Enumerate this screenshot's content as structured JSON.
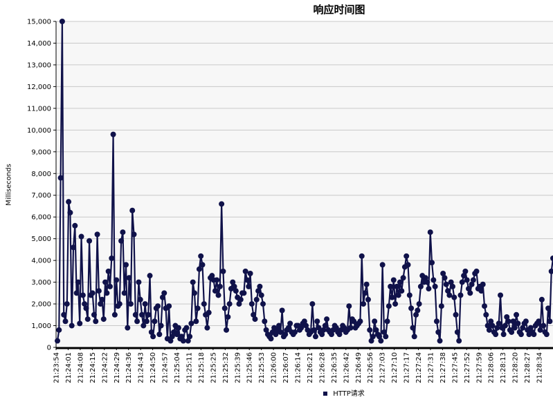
{
  "chart_data": {
    "type": "line",
    "title": "响应时间图",
    "ylabel": "Milliseconds",
    "ylim": [
      0,
      15000
    ],
    "yticks": [
      0,
      1000,
      2000,
      3000,
      4000,
      5000,
      6000,
      7000,
      8000,
      9000,
      10000,
      11000,
      12000,
      13000,
      14000,
      15000
    ],
    "ytick_labels": [
      "0",
      "1,000",
      "2,000",
      "3,000",
      "4,000",
      "5,000",
      "6,000",
      "7,000",
      "8,000",
      "9,000",
      "10,000",
      "11,000",
      "12,000",
      "13,000",
      "14,000",
      "15,000"
    ],
    "x_tick_labels": [
      "21:23:54",
      "21:24:01",
      "21:24:08",
      "21:24:15",
      "21:24:22",
      "21:24:29",
      "21:24:36",
      "21:24:43",
      "21:24:50",
      "21:24:57",
      "21:25:04",
      "21:25:11",
      "21:25:18",
      "21:25:25",
      "21:25:32",
      "21:25:39",
      "21:25:46",
      "21:25:53",
      "21:26:00",
      "21:26:07",
      "21:26:14",
      "21:26:21",
      "21:26:28",
      "21:26:35",
      "21:26:42",
      "21:26:49",
      "21:26:56",
      "21:27:03",
      "21:27:10",
      "21:27:17",
      "21:27:24",
      "21:27:31",
      "21:27:38",
      "21:27:45",
      "21:27:52",
      "21:27:59",
      "21:28:06",
      "21:28:13",
      "21:28:20",
      "21:28:27",
      "21:28:34"
    ],
    "grid": true,
    "legend_position": "bottom",
    "colors": {
      "series": "#10124a",
      "plot_bg": "#f7f7f7",
      "grid": "#c8c8c8"
    },
    "series": [
      {
        "name": "HTTP请求",
        "values": [
          300,
          800,
          7800,
          15000,
          1500,
          1200,
          2000,
          6700,
          6200,
          1000,
          4600,
          5600,
          2500,
          3000,
          1100,
          5100,
          2400,
          2000,
          1800,
          1300,
          4900,
          2400,
          2500,
          1500,
          1200,
          5200,
          2600,
          2000,
          2200,
          1300,
          3000,
          2500,
          3500,
          2800,
          4100,
          9800,
          1500,
          3100,
          1900,
          2000,
          4900,
          5300,
          2500,
          3800,
          900,
          3200,
          2000,
          6300,
          5200,
          1500,
          1200,
          3000,
          2200,
          1500,
          1000,
          2000,
          1200,
          1500,
          3300,
          700,
          500,
          1200,
          1800,
          1900,
          600,
          1000,
          2300,
          2500,
          1800,
          400,
          1900,
          300,
          500,
          700,
          1000,
          600,
          900,
          400,
          500,
          300,
          800,
          900,
          300,
          500,
          1100,
          3000,
          2500,
          1200,
          1800,
          3600,
          4200,
          3800,
          2000,
          1500,
          900,
          1600,
          3200,
          3300,
          3100,
          2600,
          3100,
          2400,
          2800,
          6600,
          3500,
          1800,
          800,
          1400,
          2000,
          2700,
          3000,
          2800,
          2600,
          2300,
          2000,
          2200,
          2500,
          2500,
          3500,
          3100,
          2800,
          3400,
          2000,
          1500,
          1300,
          2200,
          2600,
          2800,
          2400,
          2000,
          1200,
          800,
          600,
          500,
          400,
          700,
          900,
          600,
          800,
          1000,
          700,
          1700,
          500,
          600,
          800,
          900,
          1100,
          700,
          600,
          700,
          1000,
          1000,
          800,
          900,
          1100,
          1200,
          1000,
          800,
          600,
          700,
          2000,
          800,
          500,
          1200,
          900,
          700,
          600,
          800,
          1000,
          1300,
          800,
          700,
          600,
          800,
          1000,
          900,
          700,
          600,
          800,
          1000,
          900,
          700,
          800,
          1900,
          900,
          1300,
          1200,
          900,
          1000,
          1100,
          1200,
          4200,
          2000,
          2500,
          2900,
          2200,
          800,
          300,
          500,
          1200,
          800,
          600,
          500,
          300,
          3800,
          700,
          500,
          1200,
          1900,
          2800,
          2300,
          3100,
          2000,
          2800,
          2400,
          3000,
          2600,
          3200,
          3700,
          4200,
          3800,
          2400,
          1800,
          900,
          500,
          1500,
          1700,
          2000,
          2800,
          3300,
          3000,
          3200,
          3000,
          2700,
          5300,
          3900,
          3100,
          2800,
          1200,
          700,
          300,
          1900,
          3400,
          3200,
          2900,
          2600,
          2400,
          3000,
          2800,
          2300,
          1500,
          700,
          300,
          2400,
          3000,
          3300,
          3500,
          3100,
          2700,
          2500,
          2900,
          3100,
          3400,
          3500,
          2700,
          2800,
          2600,
          2900,
          1900,
          1500,
          1000,
          800,
          1200,
          1000,
          700,
          600,
          900,
          1100,
          2400,
          900,
          600,
          1000,
          1400,
          1200,
          800,
          700,
          1200,
          900,
          1500,
          1100,
          700,
          600,
          900,
          1100,
          1200,
          800,
          600,
          900,
          700,
          600,
          1000,
          1100,
          1200,
          800,
          2200,
          1000,
          700,
          600,
          1800,
          1200,
          3500,
          4100
        ]
      }
    ]
  }
}
